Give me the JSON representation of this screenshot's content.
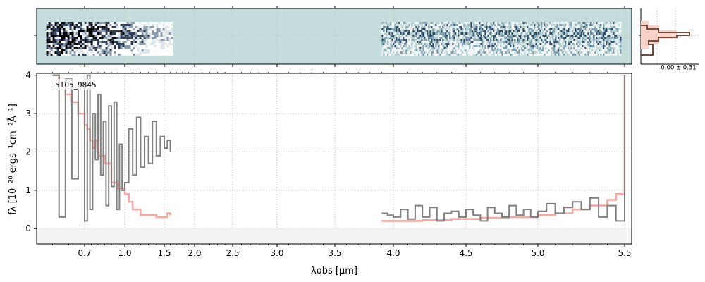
{
  "chart_data": [
    {
      "type": "heatmap",
      "description_role": "2D spectrum panel",
      "x_range_um": [
        0.55,
        5.52
      ],
      "bg_color": "#c4dcdb",
      "blocks": [
        {
          "x_range_um": [
            0.58,
            1.62
          ],
          "contrast": "high"
        },
        {
          "x_range_um": [
            3.9,
            5.48
          ],
          "contrast": "low"
        }
      ]
    },
    {
      "type": "line",
      "xlabel": "λobs [μm]",
      "ylabel": "fλ [10⁻²⁰ ergs⁻¹cm⁻²Å⁻¹]",
      "annotation": "5105_9845",
      "ylim": [
        -0.4,
        4.05
      ],
      "x_ticks": [
        "0.7",
        "1.0",
        "1.5",
        "2.0",
        "2.5",
        "3.0",
        "3.5",
        "4.0",
        "4.5",
        "5.0",
        "5.5"
      ],
      "y_ticks": [
        "0",
        "1",
        "2",
        "3",
        "4"
      ],
      "grid": true,
      "series": [
        {
          "role": "flux",
          "color": "#808080",
          "segments": [
            {
              "x": [
                0.6,
                0.62,
                0.64,
                0.66,
                0.68,
                0.7,
                0.72,
                0.74,
                0.76,
                0.78,
                0.8,
                0.82,
                0.84,
                0.86,
                0.88,
                0.9,
                0.92,
                0.94,
                0.96,
                0.98,
                1.0,
                1.05,
                1.1,
                1.15,
                1.2,
                1.25,
                1.3,
                1.35,
                1.4,
                1.45,
                1.5,
                1.55,
                1.6
              ],
              "y": [
                4.0,
                0.3,
                3.9,
                1.3,
                3.8,
                0.2,
                4.0,
                0.5,
                3.0,
                1.8,
                3.5,
                1.4,
                2.8,
                0.6,
                3.2,
                1.1,
                3.3,
                0.5,
                2.2,
                1.0,
                1.2,
                2.6,
                1.4,
                2.9,
                1.6,
                2.4,
                1.7,
                2.8,
                1.9,
                2.4,
                2.1,
                2.3,
                2.0
              ]
            },
            {
              "x": [
                3.9,
                3.95,
                4.0,
                4.05,
                4.1,
                4.15,
                4.2,
                4.25,
                4.3,
                4.35,
                4.4,
                4.45,
                4.5,
                4.55,
                4.6,
                4.65,
                4.7,
                4.75,
                4.8,
                4.85,
                4.9,
                4.95,
                5.0,
                5.05,
                5.1,
                5.15,
                5.2,
                5.25,
                5.3,
                5.35,
                5.4,
                5.45,
                5.5
              ],
              "y": [
                0.4,
                0.35,
                0.3,
                0.5,
                0.25,
                0.6,
                0.3,
                0.55,
                0.2,
                0.4,
                0.45,
                0.3,
                0.5,
                0.35,
                0.2,
                0.55,
                0.4,
                0.3,
                0.6,
                0.35,
                0.5,
                0.3,
                0.45,
                0.65,
                0.4,
                0.55,
                0.7,
                0.5,
                0.8,
                0.3,
                0.6,
                0.2,
                4.0
              ]
            }
          ]
        },
        {
          "role": "model",
          "color": "#f4a9a3",
          "segments": [
            {
              "x": [
                0.6,
                0.62,
                0.64,
                0.66,
                0.68,
                0.7,
                0.72,
                0.74,
                0.76,
                0.78,
                0.8,
                0.85,
                0.9,
                0.95,
                1.0,
                1.05,
                1.1,
                1.2,
                1.3,
                1.4,
                1.5,
                1.55,
                1.6
              ],
              "y": [
                4.0,
                3.7,
                3.5,
                3.3,
                3.0,
                2.7,
                2.6,
                2.3,
                2.1,
                2.3,
                1.9,
                1.7,
                1.2,
                1.05,
                0.9,
                0.7,
                0.5,
                0.35,
                0.35,
                0.3,
                0.3,
                0.4,
                0.35
              ]
            },
            {
              "x": [
                3.9,
                4.0,
                4.2,
                4.4,
                4.6,
                4.8,
                5.0,
                5.1,
                5.2,
                5.3,
                5.4,
                5.45,
                5.5
              ],
              "y": [
                0.2,
                0.2,
                0.22,
                0.25,
                0.28,
                0.3,
                0.35,
                0.4,
                0.5,
                0.6,
                0.75,
                0.9,
                4.0
              ]
            }
          ]
        }
      ]
    },
    {
      "type": "histogram",
      "role": "residual distribution",
      "annotation": "-0.00 ± 0.31",
      "color": "#7b4a3a",
      "fill_color": "#f6d2c9"
    }
  ]
}
